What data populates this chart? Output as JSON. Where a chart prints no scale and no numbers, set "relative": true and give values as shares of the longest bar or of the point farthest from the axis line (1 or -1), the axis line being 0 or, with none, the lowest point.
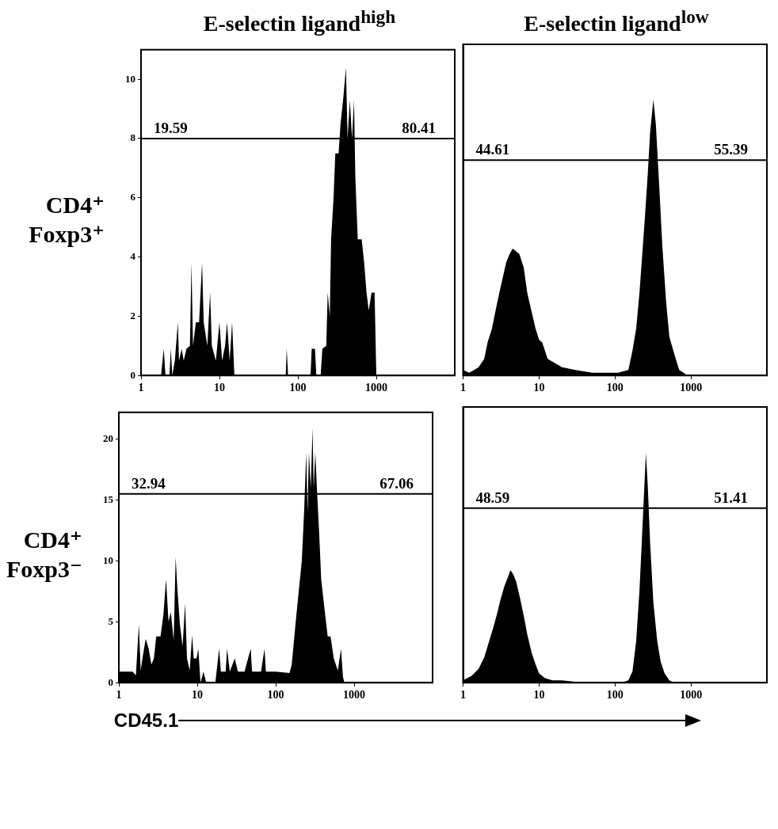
{
  "chart_data": [
    {
      "type": "area",
      "title": "E-selectin ligand$^{high}$",
      "ylabel": "CD4⁺\nFoxp3⁺",
      "log": "x",
      "xlim": [
        1,
        10000
      ],
      "xticks": [
        1,
        10,
        100,
        1000
      ],
      "ylim": [
        0,
        11
      ],
      "yticks": [
        0,
        2,
        4,
        6,
        8,
        10
      ],
      "color": "#000000",
      "x": [
        1,
        1.8,
        1.95,
        2.05,
        2.3,
        2.4,
        2.5,
        2.7,
        2.95,
        3.05,
        3.3,
        3.5,
        3.8,
        4.2,
        4.4,
        4.6,
        5,
        5.5,
        6,
        6.3,
        7,
        7.6,
        8,
        9,
        10,
        10.8,
        11.8,
        12.5,
        13.5,
        14.5,
        15.5,
        70,
        72,
        75,
        145,
        150,
        165,
        172,
        195,
        205,
        230,
        240,
        255,
        265,
        285,
        300,
        330,
        350,
        380,
        410,
        430,
        460,
        490,
        520,
        540,
        580,
        650,
        700,
        750,
        800,
        870,
        950,
        1000,
        10000
      ],
      "values": [
        0,
        0,
        0.9,
        0,
        0,
        0.9,
        0,
        0.5,
        1.8,
        0.5,
        0.9,
        0.5,
        0.9,
        1,
        3.8,
        1,
        1.8,
        1.8,
        3.8,
        1.8,
        1,
        2.8,
        1,
        0.5,
        1.8,
        0.5,
        1,
        1.8,
        0.5,
        1.8,
        0,
        0,
        0.9,
        0,
        0,
        0.9,
        0.9,
        0,
        0,
        0.9,
        1,
        2.8,
        2,
        4.6,
        6,
        7.5,
        7.5,
        8.5,
        9.4,
        10.4,
        8,
        9.3,
        8,
        9.3,
        6.7,
        4.6,
        4.6,
        3.8,
        2.8,
        2.2,
        2.8,
        2.8,
        0,
        0
      ],
      "ref_lines": [
        {
          "axis": "y",
          "value": 8
        }
      ],
      "annotations": [
        "19.59",
        "80.41"
      ]
    },
    {
      "type": "area",
      "title": "E-selectin ligand$^{low}$",
      "log": "x",
      "xlim": [
        1,
        10000
      ],
      "xticks": [
        1,
        10,
        100,
        1000
      ],
      "relative": true,
      "tick_labels": "x",
      "color": "#000000",
      "x": [
        1,
        1.2,
        1.4,
        1.6,
        1.9,
        2.1,
        2.4,
        2.7,
        3,
        3.3,
        3.7,
        4.1,
        4.5,
        5,
        5.5,
        6.3,
        7,
        8,
        9,
        10,
        11,
        13,
        15,
        20,
        30,
        50,
        80,
        110,
        150,
        170,
        190,
        210,
        230,
        250,
        270,
        290,
        320,
        345,
        380,
        420,
        470,
        520,
        600,
        700,
        800,
        900,
        10000
      ],
      "values": [
        0.02,
        0.01,
        0.02,
        0.03,
        0.06,
        0.12,
        0.17,
        0.24,
        0.3,
        0.35,
        0.41,
        0.44,
        0.46,
        0.45,
        0.44,
        0.39,
        0.3,
        0.23,
        0.17,
        0.13,
        0.12,
        0.06,
        0.05,
        0.03,
        0.02,
        0.01,
        0.01,
        0.01,
        0.02,
        0.09,
        0.17,
        0.3,
        0.45,
        0.59,
        0.73,
        0.88,
        1,
        0.91,
        0.7,
        0.47,
        0.27,
        0.14,
        0.08,
        0.02,
        0.01,
        0,
        0
      ],
      "ref_lines": [
        {
          "axis": "y",
          "value": 0.78
        }
      ],
      "annotations": [
        "44.61",
        "55.39"
      ]
    },
    {
      "type": "area",
      "ylabel": "CD4⁺\nFoxp3⁻",
      "xlabel": "CD45.1",
      "log": "x",
      "xlim": [
        1,
        10000
      ],
      "xticks": [
        1,
        10,
        100,
        1000
      ],
      "ylim": [
        0,
        22.2
      ],
      "yticks": [
        0,
        5,
        10,
        15,
        20
      ],
      "color": "#000000",
      "x": [
        1,
        1.2,
        1.5,
        1.65,
        1.8,
        1.9,
        2,
        2.2,
        2.4,
        2.6,
        2.8,
        3,
        3.4,
        3.7,
        4,
        4.3,
        4.6,
        5,
        5.3,
        5.6,
        6,
        6.5,
        7,
        7.4,
        8,
        8.6,
        9,
        9.8,
        10.3,
        11,
        12,
        13,
        17,
        19,
        20,
        23,
        24,
        26,
        30,
        33,
        40,
        48,
        50,
        65,
        72,
        75,
        100,
        150,
        160,
        180,
        200,
        215,
        230,
        245,
        255,
        265,
        280,
        295,
        305,
        320,
        335,
        360,
        380,
        420,
        460,
        500,
        550,
        620,
        680,
        720,
        750,
        10000
      ],
      "values": [
        0.9,
        0.9,
        0.9,
        0.6,
        4.8,
        1,
        2,
        3.6,
        2.8,
        1.5,
        2,
        3.8,
        3.8,
        5.6,
        8.5,
        5,
        5.8,
        3.5,
        10.3,
        7.5,
        4.8,
        3,
        6.5,
        2,
        1,
        3.9,
        2,
        2,
        2.8,
        0,
        0.9,
        0,
        0,
        2.8,
        0.9,
        0.9,
        2.8,
        0.9,
        2,
        0.9,
        0.9,
        2.8,
        0.9,
        0.9,
        2.8,
        0.9,
        0.9,
        0.8,
        1.5,
        5,
        8,
        10,
        14,
        18.9,
        14,
        18.9,
        16,
        20.9,
        16,
        18.9,
        16,
        12,
        8.5,
        6,
        3.8,
        3.8,
        2,
        1,
        2.8,
        0.5,
        0,
        0
      ],
      "ref_lines": [
        {
          "axis": "y",
          "value": 15.5
        }
      ],
      "annotations": [
        "32.94",
        "67.06"
      ]
    },
    {
      "type": "area",
      "log": "x",
      "xlim": [
        1,
        10000
      ],
      "xticks": [
        1,
        10,
        100,
        1000
      ],
      "relative": true,
      "tick_labels": "x",
      "color": "#000000",
      "x": [
        1,
        1.3,
        1.6,
        1.9,
        2.2,
        2.5,
        2.8,
        3.1,
        3.5,
        3.9,
        4.2,
        4.6,
        5,
        5.6,
        6.3,
        7,
        8,
        9,
        10,
        12,
        15,
        20,
        40,
        120,
        150,
        170,
        190,
        210,
        225,
        240,
        255,
        270,
        290,
        320,
        360,
        400,
        450,
        520,
        600,
        10000
      ],
      "values": [
        0.01,
        0.03,
        0.06,
        0.11,
        0.18,
        0.24,
        0.3,
        0.36,
        0.42,
        0.46,
        0.49,
        0.47,
        0.44,
        0.37,
        0.29,
        0.21,
        0.13,
        0.08,
        0.04,
        0.02,
        0.01,
        0.01,
        0,
        0,
        0.01,
        0.05,
        0.18,
        0.4,
        0.61,
        0.81,
        1,
        0.86,
        0.61,
        0.35,
        0.18,
        0.09,
        0.04,
        0.01,
        0,
        0
      ],
      "ref_lines": [
        {
          "axis": "y",
          "value": 0.76
        }
      ],
      "annotations": [
        "48.59",
        "51.41"
      ]
    }
  ]
}
